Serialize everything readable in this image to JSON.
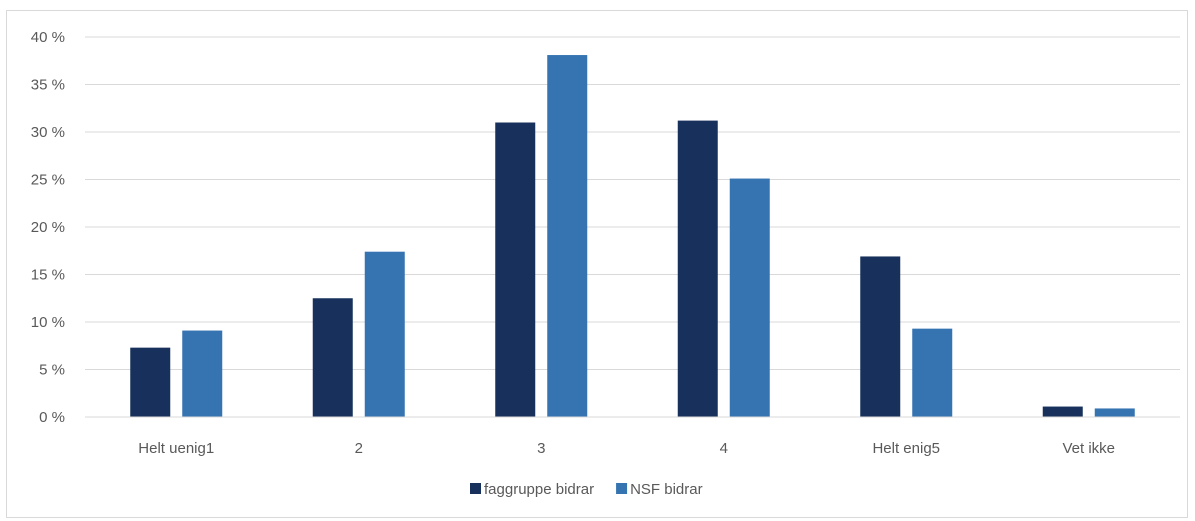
{
  "chart_data": {
    "type": "bar",
    "title": "",
    "xlabel": "",
    "ylabel": "",
    "categories": [
      "Helt uenig1",
      "2",
      "3",
      "4",
      "Helt enig5",
      "Vet ikke"
    ],
    "series": [
      {
        "name": "faggruppe bidrar",
        "color": "#17305c",
        "values": [
          7.3,
          12.5,
          31.0,
          31.2,
          16.9,
          1.1
        ]
      },
      {
        "name": "NSF bidrar",
        "color": "#3573b1",
        "values": [
          9.1,
          17.4,
          38.1,
          25.1,
          9.3,
          0.9
        ]
      }
    ],
    "ylim": [
      0,
      40
    ],
    "yticks": [
      0,
      5,
      10,
      15,
      20,
      25,
      30,
      35,
      40
    ],
    "ytick_labels": [
      "0 %",
      "5 %",
      "10 %",
      "15 %",
      "20 %",
      "25 %",
      "30 %",
      "35 %",
      "40 %"
    ],
    "grid": true,
    "legend_position": "bottom"
  }
}
